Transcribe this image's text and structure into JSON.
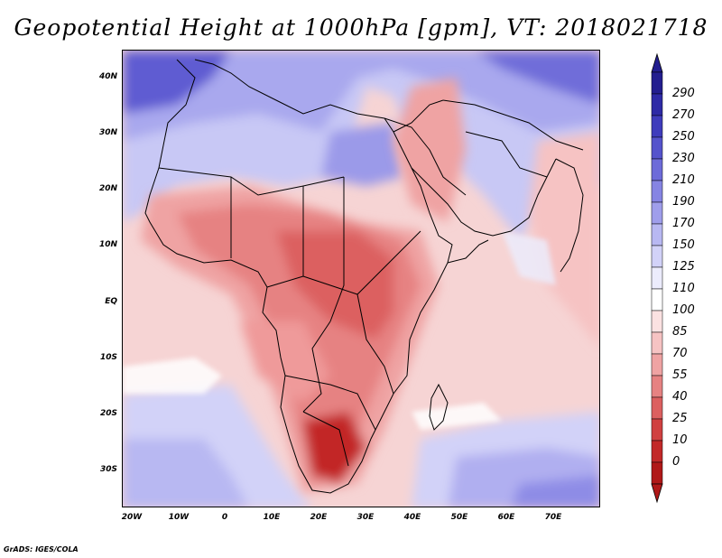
{
  "title": "Geopotential Height at 1000hPa [gpm], VT: 2018021718",
  "credit": "GrADS: IGES/COLA",
  "map": {
    "lat_labels": [
      "40N",
      "30N",
      "20N",
      "10N",
      "EQ",
      "10S",
      "20S",
      "30S"
    ],
    "lon_labels": [
      "20W",
      "10W",
      "0",
      "10E",
      "20E",
      "30E",
      "40E",
      "50E",
      "60E",
      "70E"
    ]
  },
  "colorbar": {
    "levels": [
      "290",
      "270",
      "250",
      "230",
      "210",
      "190",
      "170",
      "150",
      "125",
      "110",
      "100",
      "85",
      "70",
      "55",
      "40",
      "25",
      "10",
      "0"
    ],
    "colors": [
      "#231e8f",
      "#2e2aa6",
      "#3f3cbc",
      "#5553cc",
      "#6d6bd9",
      "#8684e3",
      "#9f9eeb",
      "#b8b8f2",
      "#d2d2f8",
      "#ececfc",
      "#ffffff",
      "#fbe2e2",
      "#f6c3c3",
      "#efa3a3",
      "#e68282",
      "#dc6060",
      "#d04040",
      "#c22828",
      "#b01818"
    ],
    "unit": "gpm"
  }
}
